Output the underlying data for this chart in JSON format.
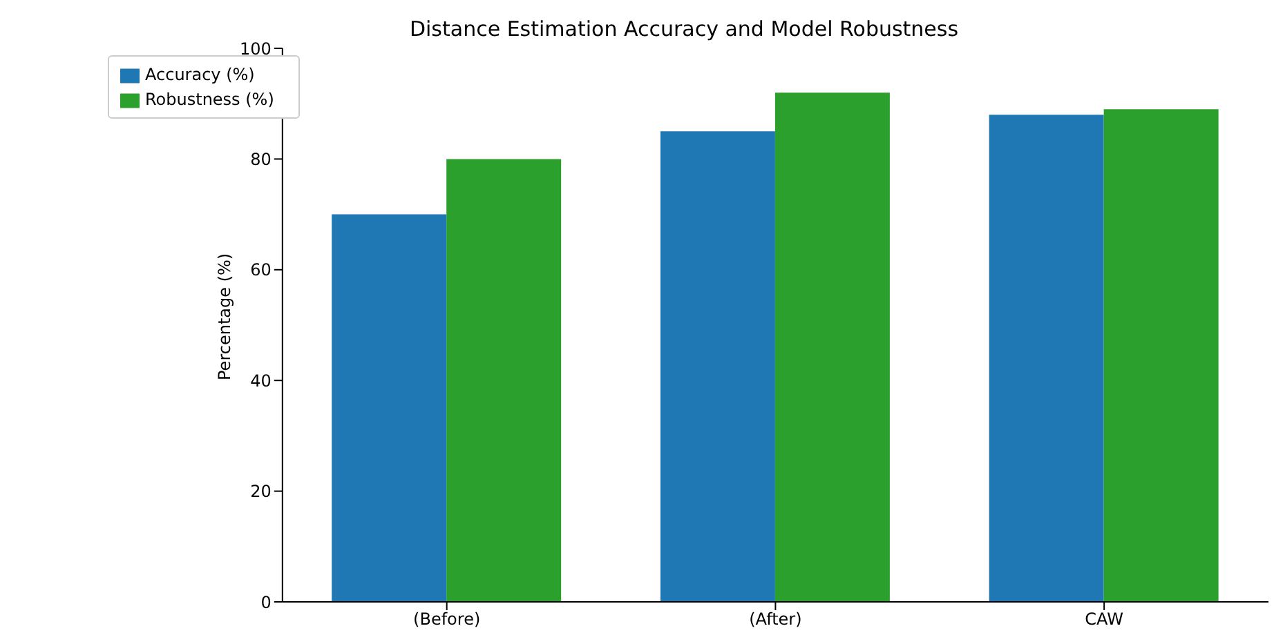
{
  "chart_data": {
    "type": "bar",
    "title": "Distance Estimation Accuracy and Model Robustness",
    "ylabel": "Percentage (%)",
    "categories": [
      "(Before)",
      "(After)",
      "CAW"
    ],
    "series": [
      {
        "name": "Accuracy (%)",
        "color": "#1f77b4",
        "values": [
          70,
          85,
          88
        ]
      },
      {
        "name": "Robustness (%)",
        "color": "#2ca02c",
        "values": [
          80,
          92,
          89
        ]
      }
    ],
    "ylim": [
      0,
      100
    ],
    "yticks": [
      0,
      20,
      40,
      60,
      80,
      100
    ],
    "grid": false,
    "legend": "top left"
  }
}
